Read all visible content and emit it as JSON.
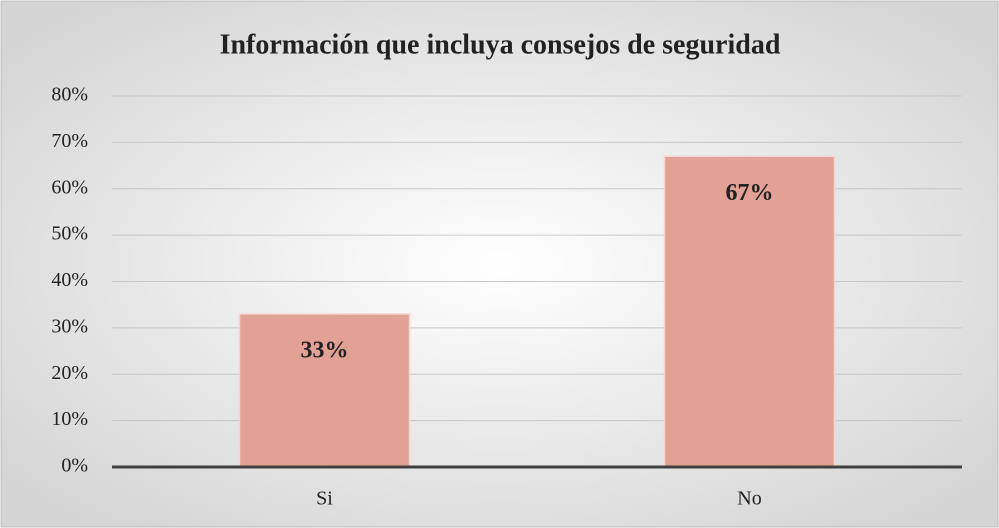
{
  "chart_data": {
    "type": "bar",
    "title": "Información que incluya consejos de seguridad",
    "categories": [
      "Si",
      "No"
    ],
    "values": [
      33,
      67
    ],
    "value_labels": [
      "33%",
      "67%"
    ],
    "color": "#e3a196",
    "ylim": [
      0,
      80
    ],
    "yticks": [
      {
        "value": 0,
        "label": "0%"
      },
      {
        "value": 10,
        "label": "10%"
      },
      {
        "value": 20,
        "label": "20%"
      },
      {
        "value": 30,
        "label": "30%"
      },
      {
        "value": 40,
        "label": "40%"
      },
      {
        "value": 50,
        "label": "50%"
      },
      {
        "value": 60,
        "label": "60%"
      },
      {
        "value": 70,
        "label": "70%"
      },
      {
        "value": 80,
        "label": "80%"
      }
    ],
    "grid": true
  }
}
